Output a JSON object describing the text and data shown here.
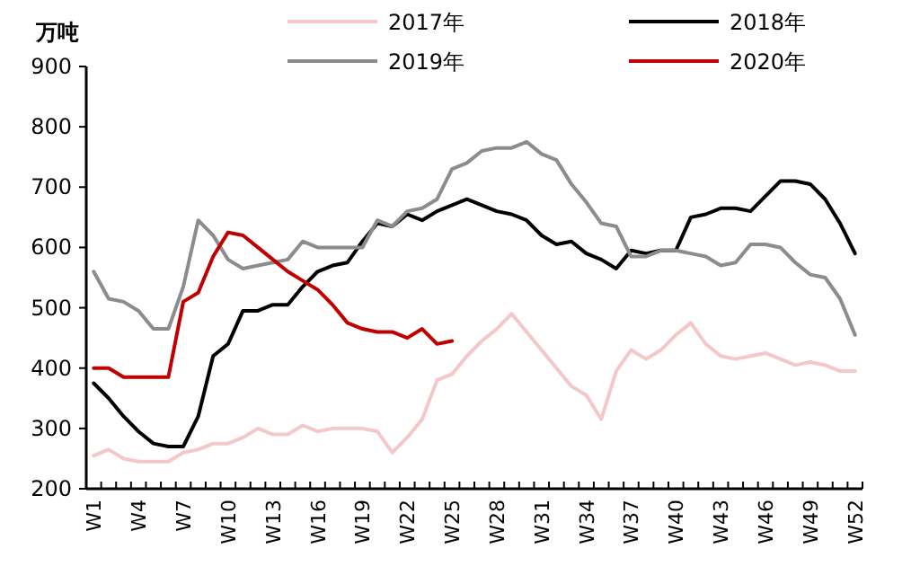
{
  "chart_data": {
    "type": "line",
    "ylabel": "万吨",
    "legend": "top",
    "ylim": [
      200,
      900
    ],
    "yticks": [
      200,
      300,
      400,
      500,
      600,
      700,
      800,
      900
    ],
    "categories": [
      "W1",
      null,
      null,
      "W4",
      null,
      null,
      "W7",
      null,
      null,
      "W10",
      null,
      null,
      "W13",
      null,
      null,
      "W16",
      null,
      null,
      "W19",
      null,
      null,
      "W22",
      null,
      null,
      "W25",
      null,
      null,
      "W28",
      null,
      null,
      "W31",
      null,
      null,
      "W34",
      null,
      null,
      "W37",
      null,
      null,
      "W40",
      null,
      null,
      "W43",
      null,
      null,
      "W46",
      null,
      null,
      "W49",
      null,
      null,
      "W52"
    ],
    "series": [
      {
        "name": "2017年",
        "color": "#f4c7c9",
        "values": [
          255,
          265,
          250,
          245,
          245,
          245,
          260,
          265,
          275,
          275,
          285,
          300,
          290,
          290,
          305,
          295,
          300,
          300,
          300,
          295,
          260,
          285,
          315,
          380,
          390,
          420,
          445,
          465,
          490,
          460,
          430,
          400,
          370,
          355,
          315,
          395,
          430,
          415,
          430,
          455,
          475,
          440,
          420,
          415,
          420,
          425,
          415,
          405,
          410,
          405,
          395,
          395
        ]
      },
      {
        "name": "2018年",
        "color": "#000000",
        "values": [
          375,
          350,
          320,
          295,
          275,
          270,
          270,
          320,
          420,
          440,
          495,
          495,
          505,
          505,
          535,
          560,
          570,
          575,
          610,
          640,
          635,
          655,
          645,
          660,
          670,
          680,
          670,
          660,
          655,
          645,
          620,
          605,
          610,
          590,
          580,
          565,
          595,
          590,
          595,
          595,
          650,
          655,
          665,
          665,
          660,
          685,
          710,
          710,
          705,
          680,
          640,
          590
        ]
      },
      {
        "name": "2019年",
        "color": "#8c8c8c",
        "values": [
          560,
          515,
          510,
          495,
          465,
          465,
          535,
          645,
          620,
          580,
          565,
          570,
          575,
          580,
          610,
          600,
          600,
          600,
          600,
          645,
          635,
          660,
          665,
          680,
          730,
          740,
          760,
          765,
          765,
          775,
          755,
          745,
          705,
          675,
          640,
          635,
          585,
          585,
          595,
          595,
          590,
          585,
          570,
          575,
          605,
          605,
          600,
          575,
          555,
          550,
          515,
          455
        ]
      },
      {
        "name": "2020年",
        "color": "#c00000",
        "values": [
          400,
          400,
          385,
          385,
          385,
          385,
          510,
          525,
          585,
          625,
          620,
          600,
          580,
          560,
          545,
          530,
          505,
          475,
          465,
          460,
          460,
          450,
          465,
          440,
          445,
          null,
          null,
          null,
          null,
          null,
          null,
          null,
          null,
          null,
          null,
          null,
          null,
          null,
          null,
          null,
          null,
          null,
          null,
          null,
          null,
          null,
          null,
          null,
          null,
          null,
          null,
          null
        ]
      }
    ]
  }
}
